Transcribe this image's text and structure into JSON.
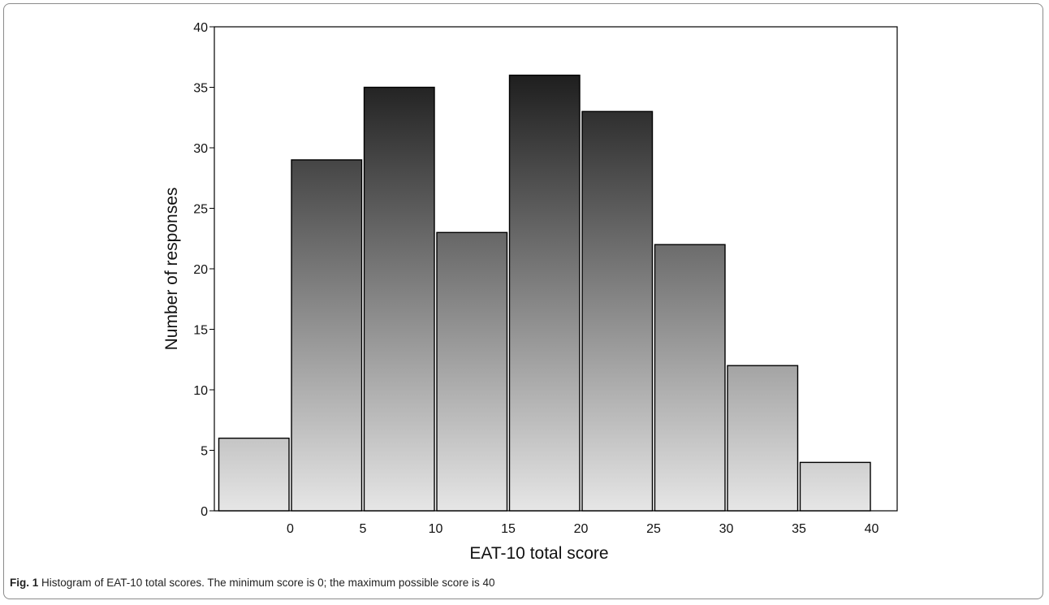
{
  "chart_data": {
    "type": "bar",
    "bins": [
      {
        "label": "",
        "value": 6
      },
      {
        "label": "0",
        "value": 29
      },
      {
        "label": "5",
        "value": 35
      },
      {
        "label": "10",
        "value": 23
      },
      {
        "label": "15",
        "value": 36
      },
      {
        "label": "20",
        "value": 33
      },
      {
        "label": "25",
        "value": 22
      },
      {
        "label": "30",
        "value": 12
      },
      {
        "label": "35",
        "value": 4
      }
    ],
    "x_tick_labels": [
      "0",
      "5",
      "10",
      "15",
      "20",
      "25",
      "30",
      "35",
      "40"
    ],
    "values": [
      6,
      29,
      35,
      23,
      36,
      33,
      22,
      12,
      4
    ],
    "xlabel": "EAT-10 total score",
    "ylabel": "Number of responses",
    "ylim": [
      0,
      40
    ],
    "y_ticks": [
      0,
      5,
      10,
      15,
      20,
      25,
      30,
      35,
      40
    ],
    "grid": false,
    "bar_fill": "vertical gradient dark-to-light",
    "colors": {
      "bar_top": "#1e1e1e",
      "bar_bottom": "#e6e6e6",
      "bar_border": "#000000"
    }
  },
  "caption": {
    "label": "Fig. 1",
    "text": " Histogram of EAT-10 total scores. The minimum score is 0; the maximum possible score is 40"
  }
}
